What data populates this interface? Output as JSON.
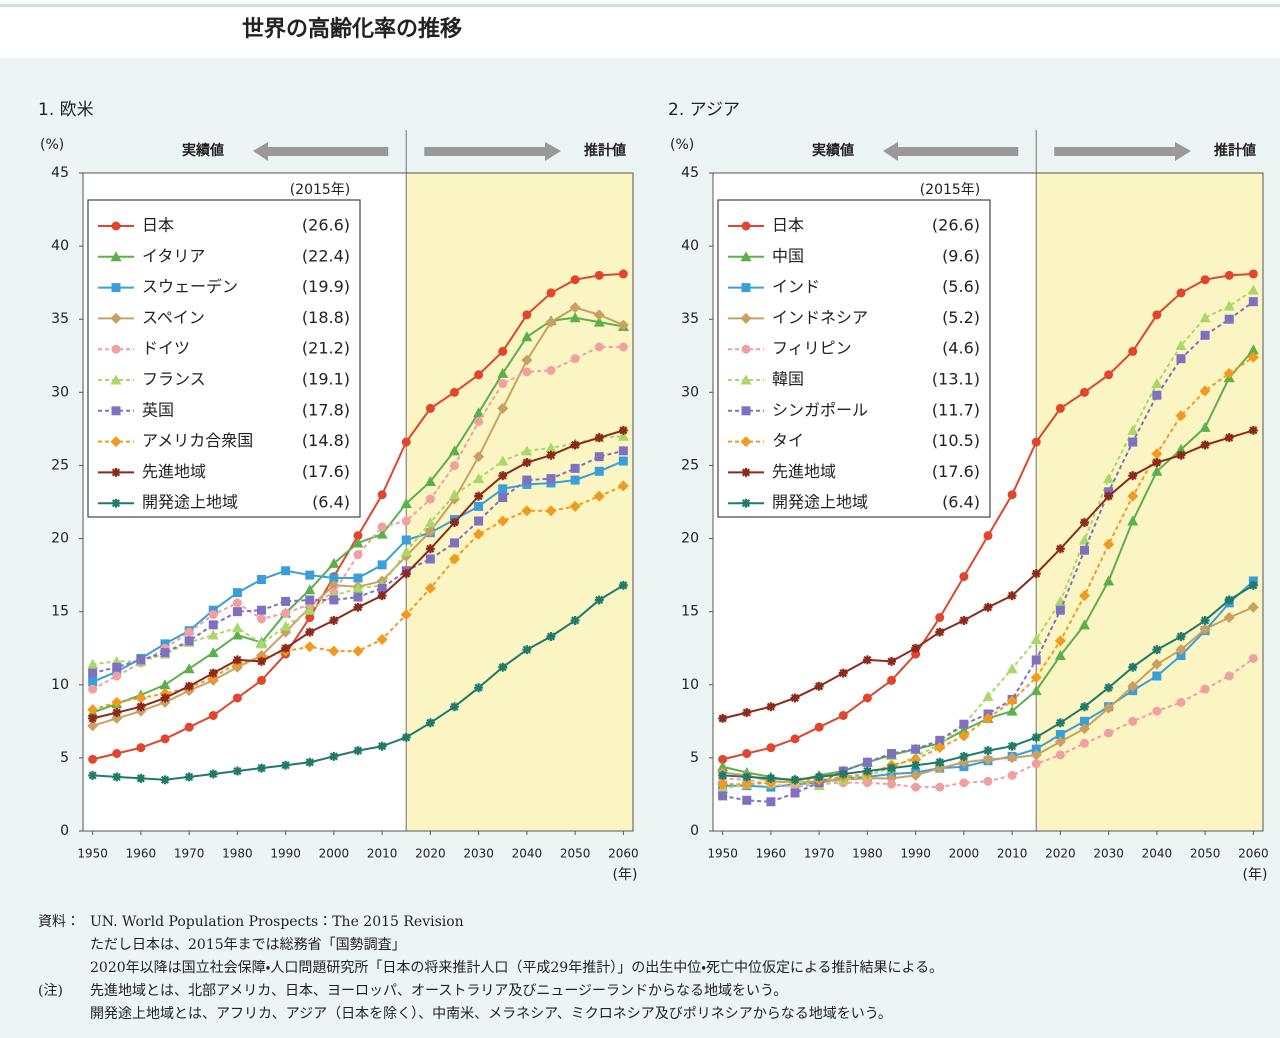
{
  "title": "世界の高齢化率の推移",
  "chart_data": [
    {
      "type": "line",
      "title": "1. 欧米",
      "y_unit": "(%)",
      "x_unit": "(年)",
      "left_arrow_label": "実績値",
      "right_arrow_label": "推計値",
      "legend_header": "(2015年)",
      "shade_from": 2015,
      "xlim": [
        1948,
        2062
      ],
      "ylim": [
        0,
        45
      ],
      "xticks": [
        1950,
        1960,
        1970,
        1980,
        1990,
        2000,
        2010,
        2020,
        2030,
        2040,
        2050,
        2060
      ],
      "yticks": [
        0,
        5,
        10,
        15,
        20,
        25,
        30,
        35,
        40,
        45
      ],
      "x": [
        1950,
        1955,
        1960,
        1965,
        1970,
        1975,
        1980,
        1985,
        1990,
        1995,
        2000,
        2005,
        2010,
        2015,
        2020,
        2025,
        2030,
        2035,
        2040,
        2045,
        2050,
        2055,
        2060
      ],
      "series": [
        {
          "name": "日本",
          "legend_value": "(26.6)",
          "color": "#e0452d",
          "marker": "circle",
          "dashed": false,
          "values": [
            4.9,
            5.3,
            5.7,
            6.3,
            7.1,
            7.9,
            9.1,
            10.3,
            12.1,
            14.6,
            17.4,
            20.2,
            23.0,
            26.6,
            28.9,
            30.0,
            31.2,
            32.8,
            35.3,
            36.8,
            37.7,
            38.0,
            38.1
          ]
        },
        {
          "name": "イタリア",
          "legend_value": "(22.4)",
          "color": "#5bb04a",
          "marker": "triangle",
          "dashed": false,
          "values": [
            8.1,
            8.7,
            9.3,
            10.0,
            11.1,
            12.2,
            13.4,
            12.9,
            14.9,
            16.5,
            18.3,
            19.7,
            20.3,
            22.4,
            23.9,
            26.0,
            28.6,
            31.3,
            33.8,
            34.9,
            35.1,
            34.8,
            34.5
          ]
        },
        {
          "name": "スウェーデン",
          "legend_value": "(19.9)",
          "color": "#3a9fd8",
          "marker": "square",
          "dashed": false,
          "values": [
            10.2,
            10.9,
            11.8,
            12.8,
            13.7,
            15.1,
            16.3,
            17.2,
            17.8,
            17.5,
            17.3,
            17.3,
            18.2,
            19.9,
            20.4,
            21.3,
            22.2,
            23.4,
            23.7,
            23.8,
            24.0,
            24.6,
            25.3
          ]
        },
        {
          "name": "スペイン",
          "legend_value": "(18.8)",
          "color": "#c9a060",
          "marker": "diamond",
          "dashed": false,
          "values": [
            7.2,
            7.7,
            8.2,
            8.8,
            9.6,
            10.3,
            11.2,
            12.0,
            13.6,
            15.3,
            16.8,
            16.7,
            17.1,
            18.8,
            20.5,
            22.7,
            25.6,
            28.9,
            32.2,
            34.8,
            35.8,
            35.3,
            34.6
          ]
        },
        {
          "name": "ドイツ",
          "legend_value": "(21.2)",
          "color": "#f0a0a0",
          "marker": "circle",
          "dashed": true,
          "values": [
            9.7,
            10.6,
            11.5,
            12.5,
            13.6,
            14.8,
            15.6,
            14.5,
            14.9,
            15.5,
            16.3,
            18.9,
            20.8,
            21.2,
            22.7,
            25.0,
            28.0,
            30.6,
            31.4,
            31.5,
            32.3,
            33.1,
            33.1
          ]
        },
        {
          "name": "フランス",
          "legend_value": "(19.1)",
          "color": "#a8d86a",
          "marker": "triangle",
          "dashed": true,
          "values": [
            11.4,
            11.6,
            11.6,
            12.1,
            12.9,
            13.4,
            13.9,
            12.8,
            14.0,
            15.1,
            16.1,
            16.6,
            16.8,
            19.1,
            21.1,
            23.0,
            24.1,
            25.3,
            26.0,
            26.2,
            26.5,
            26.9,
            27.0
          ]
        },
        {
          "name": "英国",
          "legend_value": "(17.8)",
          "color": "#8070c0",
          "marker": "square",
          "dashed": true,
          "values": [
            10.8,
            11.2,
            11.7,
            12.2,
            13.0,
            14.1,
            15.0,
            15.1,
            15.7,
            15.8,
            15.8,
            16.0,
            16.6,
            17.8,
            18.6,
            19.7,
            21.2,
            22.8,
            24.0,
            24.1,
            24.8,
            25.6,
            26.0
          ]
        },
        {
          "name": "アメリカ合衆国",
          "legend_value": "(14.8)",
          "color": "#f29a20",
          "marker": "diamond",
          "dashed": true,
          "values": [
            8.3,
            8.8,
            9.1,
            9.4,
            9.8,
            10.5,
            11.5,
            11.8,
            12.3,
            12.6,
            12.3,
            12.3,
            13.1,
            14.8,
            16.6,
            18.6,
            20.3,
            21.2,
            21.9,
            21.9,
            22.2,
            22.9,
            23.6
          ]
        },
        {
          "name": "先進地域",
          "legend_value": "(17.6)",
          "color": "#8b2a1a",
          "marker": "star",
          "dashed": false,
          "values": [
            7.7,
            8.1,
            8.5,
            9.1,
            9.9,
            10.8,
            11.7,
            11.6,
            12.5,
            13.6,
            14.4,
            15.3,
            16.1,
            17.6,
            19.3,
            21.1,
            22.9,
            24.3,
            25.2,
            25.7,
            26.4,
            26.9,
            27.4
          ]
        },
        {
          "name": "開発途上地域",
          "legend_value": "(6.4)",
          "color": "#1f7a6a",
          "marker": "star",
          "dashed": false,
          "values": [
            3.8,
            3.7,
            3.6,
            3.5,
            3.7,
            3.9,
            4.1,
            4.3,
            4.5,
            4.7,
            5.1,
            5.5,
            5.8,
            6.4,
            7.4,
            8.5,
            9.8,
            11.2,
            12.4,
            13.3,
            14.4,
            15.8,
            16.8
          ]
        }
      ]
    },
    {
      "type": "line",
      "title": "2. アジア",
      "y_unit": "(%)",
      "x_unit": "(年)",
      "left_arrow_label": "実績値",
      "right_arrow_label": "推計値",
      "legend_header": "(2015年)",
      "shade_from": 2015,
      "xlim": [
        1948,
        2062
      ],
      "ylim": [
        0,
        45
      ],
      "xticks": [
        1950,
        1960,
        1970,
        1980,
        1990,
        2000,
        2010,
        2020,
        2030,
        2040,
        2050,
        2060
      ],
      "yticks": [
        0,
        5,
        10,
        15,
        20,
        25,
        30,
        35,
        40,
        45
      ],
      "x": [
        1950,
        1955,
        1960,
        1965,
        1970,
        1975,
        1980,
        1985,
        1990,
        1995,
        2000,
        2005,
        2010,
        2015,
        2020,
        2025,
        2030,
        2035,
        2040,
        2045,
        2050,
        2055,
        2060
      ],
      "series": [
        {
          "name": "日本",
          "legend_value": "(26.6)",
          "color": "#e0452d",
          "marker": "circle",
          "dashed": false,
          "values": [
            4.9,
            5.3,
            5.7,
            6.3,
            7.1,
            7.9,
            9.1,
            10.3,
            12.1,
            14.6,
            17.4,
            20.2,
            23.0,
            26.6,
            28.9,
            30.0,
            31.2,
            32.8,
            35.3,
            36.8,
            37.7,
            38.0,
            38.1
          ]
        },
        {
          "name": "中国",
          "legend_value": "(9.6)",
          "color": "#5bb04a",
          "marker": "triangle",
          "dashed": false,
          "values": [
            4.4,
            4.0,
            3.7,
            3.4,
            3.8,
            4.1,
            4.7,
            5.2,
            5.6,
            6.0,
            6.9,
            7.7,
            8.2,
            9.6,
            12.0,
            14.1,
            17.1,
            21.2,
            24.6,
            26.1,
            27.6,
            31.0,
            32.9
          ]
        },
        {
          "name": "インド",
          "legend_value": "(5.6)",
          "color": "#3a9fd8",
          "marker": "square",
          "dashed": false,
          "values": [
            3.1,
            3.1,
            3.0,
            3.2,
            3.3,
            3.6,
            3.7,
            3.9,
            4.0,
            4.3,
            4.4,
            4.8,
            5.1,
            5.6,
            6.6,
            7.5,
            8.5,
            9.6,
            10.6,
            12.0,
            13.7,
            15.6,
            17.1
          ]
        },
        {
          "name": "インドネシア",
          "legend_value": "(5.2)",
          "color": "#c9a060",
          "marker": "diamond",
          "dashed": false,
          "values": [
            4.0,
            3.8,
            3.4,
            3.3,
            3.4,
            3.5,
            3.6,
            3.6,
            3.8,
            4.3,
            4.7,
            4.9,
            5.0,
            5.2,
            6.1,
            7.0,
            8.4,
            9.9,
            11.4,
            12.4,
            13.8,
            14.6,
            15.3
          ]
        },
        {
          "name": "フィリピン",
          "legend_value": "(4.6)",
          "color": "#f0a0a0",
          "marker": "circle",
          "dashed": true,
          "values": [
            3.6,
            3.5,
            3.2,
            3.0,
            3.2,
            3.3,
            3.3,
            3.2,
            3.0,
            3.0,
            3.3,
            3.4,
            3.8,
            4.6,
            5.2,
            6.0,
            6.7,
            7.5,
            8.2,
            8.8,
            9.7,
            10.6,
            11.8
          ]
        },
        {
          "name": "韓国",
          "legend_value": "(13.1)",
          "color": "#a8d86a",
          "marker": "triangle",
          "dashed": true,
          "values": [
            2.9,
            3.2,
            3.3,
            3.4,
            3.1,
            3.5,
            3.8,
            4.3,
            5.1,
            5.9,
            7.3,
            9.2,
            11.1,
            13.1,
            15.7,
            19.9,
            24.1,
            27.4,
            30.6,
            33.2,
            35.1,
            35.9,
            37.0
          ]
        },
        {
          "name": "シンガポール",
          "legend_value": "(11.7)",
          "color": "#8070c0",
          "marker": "square",
          "dashed": true,
          "values": [
            2.4,
            2.1,
            2.0,
            2.6,
            3.3,
            4.1,
            4.7,
            5.3,
            5.6,
            6.2,
            7.3,
            8.0,
            9.0,
            11.7,
            15.1,
            19.2,
            23.2,
            26.6,
            29.8,
            32.3,
            33.9,
            35.0,
            36.2
          ]
        },
        {
          "name": "タイ",
          "legend_value": "(10.5)",
          "color": "#f29a20",
          "marker": "diamond",
          "dashed": true,
          "values": [
            3.2,
            3.2,
            3.3,
            3.5,
            3.5,
            3.7,
            3.9,
            4.5,
            4.9,
            5.7,
            6.5,
            7.7,
            8.9,
            10.5,
            13.0,
            16.1,
            19.6,
            22.9,
            25.8,
            28.4,
            30.1,
            31.3,
            32.4
          ]
        },
        {
          "name": "先進地域",
          "legend_value": "(17.6)",
          "color": "#8b2a1a",
          "marker": "star",
          "dashed": false,
          "values": [
            7.7,
            8.1,
            8.5,
            9.1,
            9.9,
            10.8,
            11.7,
            11.6,
            12.5,
            13.6,
            14.4,
            15.3,
            16.1,
            17.6,
            19.3,
            21.1,
            22.9,
            24.3,
            25.2,
            25.7,
            26.4,
            26.9,
            27.4
          ]
        },
        {
          "name": "開発途上地域",
          "legend_value": "(6.4)",
          "color": "#1f7a6a",
          "marker": "star",
          "dashed": false,
          "values": [
            3.8,
            3.7,
            3.6,
            3.5,
            3.7,
            3.9,
            4.1,
            4.3,
            4.5,
            4.7,
            5.1,
            5.5,
            5.8,
            6.4,
            7.4,
            8.5,
            9.8,
            11.2,
            12.4,
            13.3,
            14.4,
            15.8,
            16.8
          ]
        }
      ]
    }
  ],
  "notes": [
    {
      "label": "資料：",
      "lines": [
        "UN. World Population Prospects：The 2015 Revision",
        "ただし日本は、2015年までは総務省「国勢調査」",
        "2020年以降は国立社会保障・人口問題研究所「日本の将来推計人口（平成29年推計）」の出生中位・死亡中位仮定による推計結果による。"
      ]
    },
    {
      "label": "(注)",
      "lines": [
        "先進地域とは、北部アメリカ、日本、ヨーロッパ、オーストラリア及びニュージーランドからなる地域をいう。",
        "開発途上地域とは、アフリカ、アジア（日本を除く）、中南米、メラネシア、ミクロネシア及びポリネシアからなる地域をいう。"
      ]
    }
  ]
}
